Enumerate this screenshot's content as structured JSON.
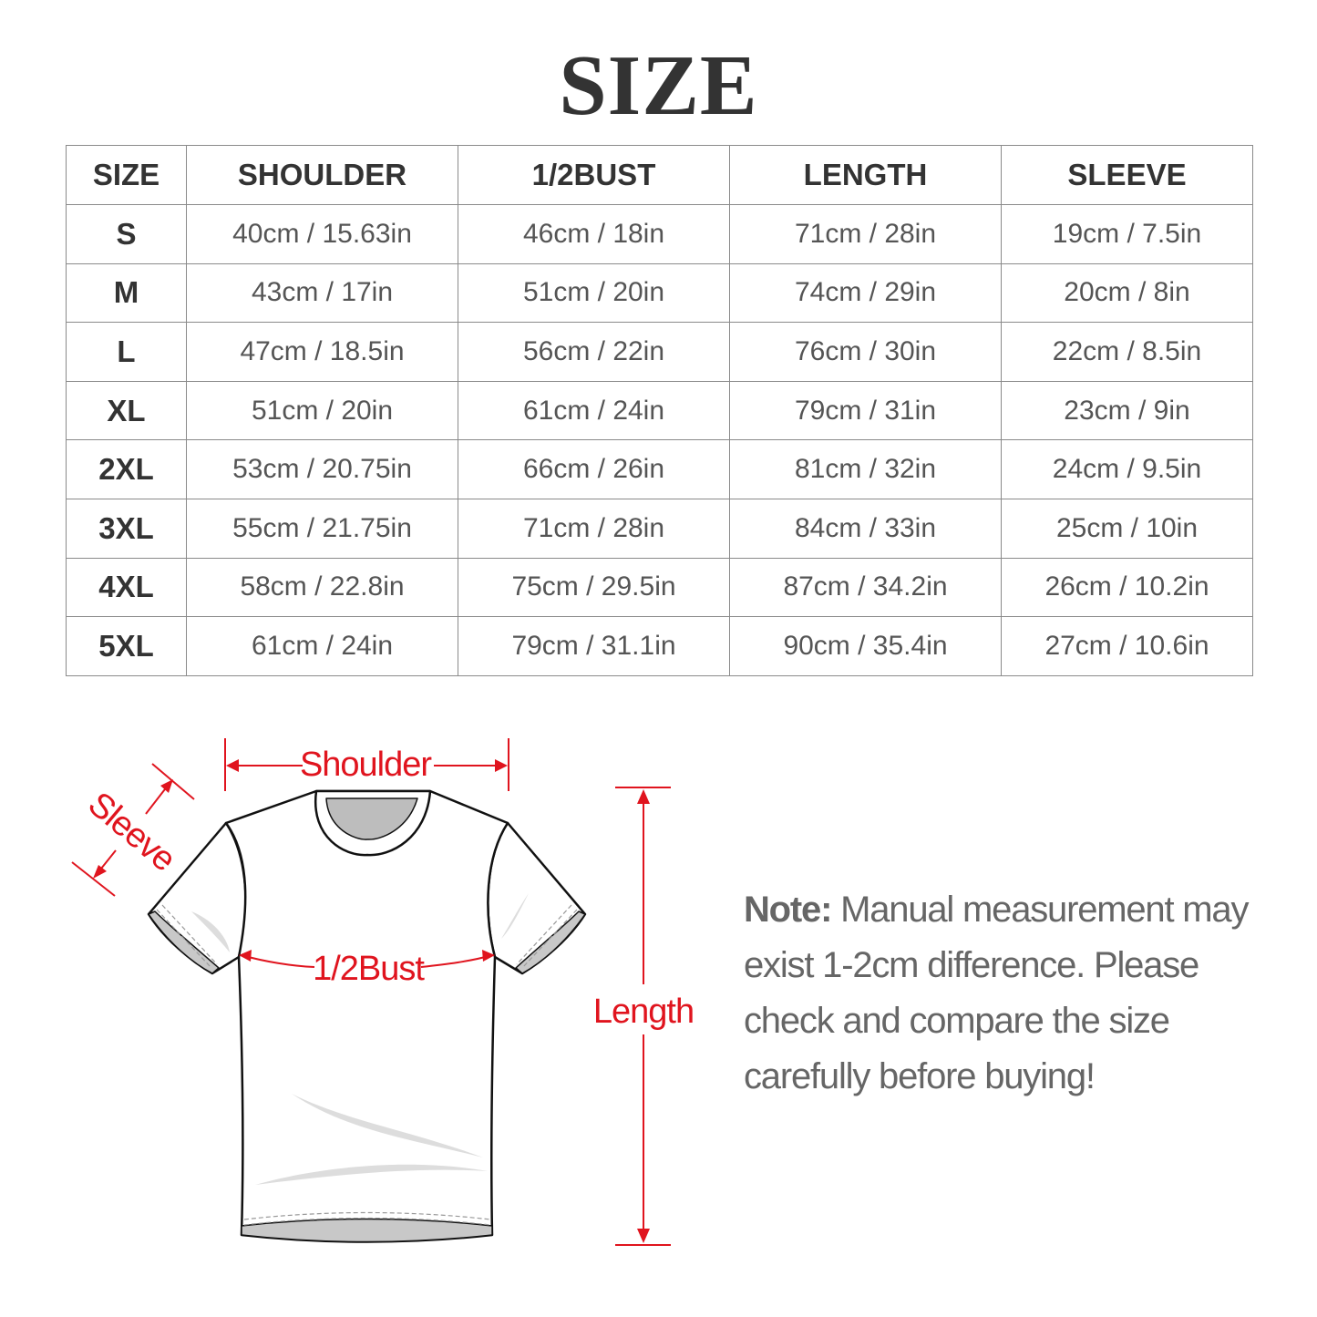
{
  "title": "SIZE",
  "table": {
    "headers": [
      "SIZE",
      "SHOULDER",
      "1/2BUST",
      "LENGTH",
      "SLEEVE"
    ],
    "rows": [
      [
        "S",
        "40cm / 15.63in",
        "46cm / 18in",
        "71cm / 28in",
        "19cm / 7.5in"
      ],
      [
        "M",
        "43cm / 17in",
        "51cm / 20in",
        "74cm / 29in",
        "20cm / 8in"
      ],
      [
        "L",
        "47cm / 18.5in",
        "56cm / 22in",
        "76cm / 30in",
        "22cm / 8.5in"
      ],
      [
        "XL",
        "51cm / 20in",
        "61cm / 24in",
        "79cm / 31in",
        "23cm / 9in"
      ],
      [
        "2XL",
        "53cm / 20.75in",
        "66cm / 26in",
        "81cm / 32in",
        "24cm / 9.5in"
      ],
      [
        "3XL",
        "55cm / 21.75in",
        "71cm / 28in",
        "84cm / 33in",
        "25cm / 10in"
      ],
      [
        "4XL",
        "58cm / 22.8in",
        "75cm / 29.5in",
        "87cm / 34.2in",
        "26cm / 10.2in"
      ],
      [
        "5XL",
        "61cm / 24in",
        "79cm / 31.1in",
        "90cm / 35.4in",
        "27cm / 10.6in"
      ]
    ]
  },
  "diagram": {
    "shoulder_label": "Shoulder",
    "sleeve_label": "Sleeve",
    "bust_label": "1/2Bust",
    "length_label": "Length",
    "accent_color": "#e0141e"
  },
  "note": {
    "label": "Note:",
    "text": " Manual measurement may exist 1-2cm difference. Please check and compare the size carefully before buying!"
  }
}
